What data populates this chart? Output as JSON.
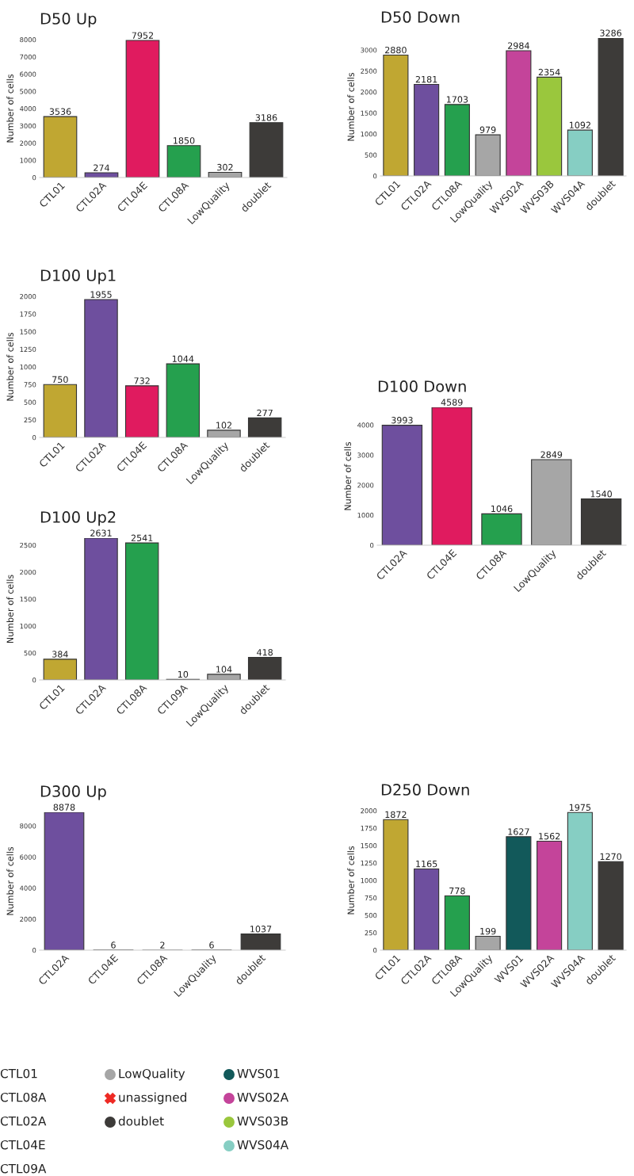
{
  "chart_data": [
    {
      "type": "bar",
      "title": "D50 Up",
      "ylabel": "Number of cells",
      "categories": [
        "CTL01",
        "CTL02A",
        "CTL04E",
        "CTL08A",
        "LowQuality",
        "doublet"
      ],
      "values": [
        3536,
        274,
        7952,
        1850,
        302,
        3186
      ],
      "colors": [
        "#c0a732",
        "#6e4f9e",
        "#e01b5f",
        "#25a04e",
        "#a6a6a6",
        "#3d3b39"
      ],
      "ylim": [
        0,
        8000
      ],
      "yticks": [
        0,
        1000,
        2000,
        3000,
        4000,
        5000,
        6000,
        7000,
        8000
      ],
      "data_labels": true
    },
    {
      "type": "bar",
      "title": "D50 Down",
      "ylabel": "Number of cells",
      "categories": [
        "CTL01",
        "CTL02A",
        "CTL08A",
        "LowQuality",
        "WVS02A",
        "WVS03B",
        "WVS04A",
        "doublet"
      ],
      "values": [
        2880,
        2181,
        1703,
        979,
        2984,
        2354,
        1092,
        3286
      ],
      "colors": [
        "#c0a732",
        "#6e4f9e",
        "#25a04e",
        "#a6a6a6",
        "#c4449a",
        "#9ac73d",
        "#86cec3",
        "#3d3b39"
      ],
      "ylim": [
        0,
        3286
      ],
      "yticks": [
        0,
        500,
        1000,
        1500,
        2000,
        2500,
        3000
      ],
      "data_labels": true
    },
    {
      "type": "bar",
      "title": "D100 Up1",
      "ylabel": "Number of cells",
      "categories": [
        "CTL01",
        "CTL02A",
        "CTL04E",
        "CTL08A",
        "LowQuality",
        "doublet"
      ],
      "values": [
        750,
        1955,
        732,
        1044,
        102,
        277
      ],
      "colors": [
        "#c0a732",
        "#6e4f9e",
        "#e01b5f",
        "#25a04e",
        "#a6a6a6",
        "#3d3b39"
      ],
      "ylim": [
        0,
        2000
      ],
      "yticks": [
        0,
        250,
        500,
        750,
        1000,
        1250,
        1500,
        1750,
        2000
      ],
      "data_labels": true
    },
    {
      "type": "bar",
      "title": "D100 Down",
      "ylabel": "Number of cells",
      "categories": [
        "CTL02A",
        "CTL04E",
        "CTL08A",
        "LowQuality",
        "doublet"
      ],
      "values": [
        3993,
        4589,
        1046,
        2849,
        1540
      ],
      "colors": [
        "#6e4f9e",
        "#e01b5f",
        "#25a04e",
        "#a6a6a6",
        "#3d3b39"
      ],
      "ylim": [
        0,
        4589
      ],
      "yticks": [
        0,
        1000,
        2000,
        3000,
        4000
      ],
      "data_labels": true
    },
    {
      "type": "bar",
      "title": "D100 Up2",
      "ylabel": "Number of cells",
      "categories": [
        "CTL01",
        "CTL02A",
        "CTL08A",
        "CTL09A",
        "LowQuality",
        "doublet"
      ],
      "values": [
        384,
        2631,
        2541,
        10,
        104,
        418
      ],
      "colors": [
        "#c0a732",
        "#6e4f9e",
        "#25a04e",
        "#3d3b39",
        "#a6a6a6",
        "#3d3b39"
      ],
      "ylim": [
        0,
        2631
      ],
      "yticks": [
        0,
        500,
        1000,
        1500,
        2000,
        2500
      ],
      "data_labels": true
    },
    {
      "type": "bar",
      "title": "D300 Up",
      "ylabel": "Number of cells",
      "categories": [
        "CTL02A",
        "CTL04E",
        "CTL08A",
        "LowQuality",
        "doublet"
      ],
      "values": [
        8878,
        6,
        2,
        6,
        1037
      ],
      "colors": [
        "#6e4f9e",
        "#e01b5f",
        "#25a04e",
        "#a6a6a6",
        "#3d3b39"
      ],
      "ylim": [
        0,
        8878
      ],
      "yticks": [
        0,
        2000,
        4000,
        6000,
        8000
      ],
      "data_labels": true
    },
    {
      "type": "bar",
      "title": "D250 Down",
      "ylabel": "Number of cells",
      "categories": [
        "CTL01",
        "CTL02A",
        "CTL08A",
        "LowQuality",
        "WVS01",
        "WVS02A",
        "WVS04A",
        "doublet"
      ],
      "values": [
        1872,
        1165,
        778,
        199,
        1627,
        1562,
        1975,
        1270
      ],
      "colors": [
        "#c0a732",
        "#6e4f9e",
        "#25a04e",
        "#a6a6a6",
        "#12595a",
        "#c4449a",
        "#86cec3",
        "#3d3b39"
      ],
      "ylim": [
        0,
        2000
      ],
      "yticks": [
        0,
        250,
        500,
        750,
        1000,
        1250,
        1500,
        1750,
        2000
      ],
      "data_labels": true
    },
    {
      "type": "other",
      "series": [
        {
          "name": "CTL01",
          "marker": "none"
        },
        {
          "name": "CTL08A",
          "marker": "none"
        },
        {
          "name": "CTL02A",
          "marker": "none"
        },
        {
          "name": "CTL04E",
          "marker": "none"
        },
        {
          "name": "CTL09A",
          "marker": "none"
        },
        {
          "name": "LowQuality",
          "color": "#a6a6a6",
          "marker": "circle"
        },
        {
          "name": "unassigned",
          "color": "#ee2a24",
          "marker": "cross"
        },
        {
          "name": "doublet",
          "color": "#3d3b39",
          "marker": "circle"
        },
        {
          "name": "WVS01",
          "color": "#12595a",
          "marker": "circle"
        },
        {
          "name": "WVS02A",
          "color": "#c4449a",
          "marker": "circle"
        },
        {
          "name": "WVS03B",
          "color": "#9ac73d",
          "marker": "circle"
        },
        {
          "name": "WVS04A",
          "color": "#86cec3",
          "marker": "circle"
        }
      ]
    }
  ]
}
